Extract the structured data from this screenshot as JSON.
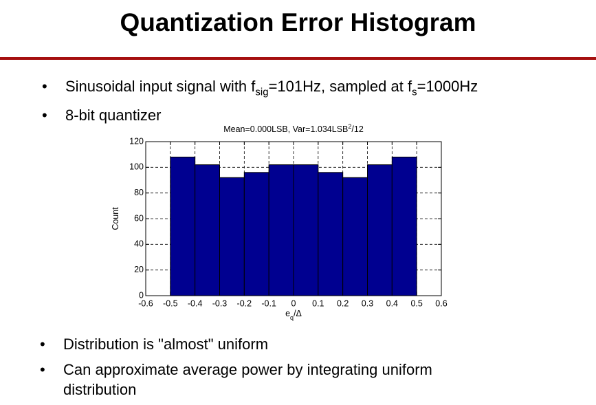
{
  "slide": {
    "title": "Quantization Error Histogram",
    "bullets_top": [
      [
        {
          "text": "Sinusoidal input signal with f"
        },
        {
          "sub": "sig"
        },
        {
          "text": "=101Hz, sampled at f"
        },
        {
          "sub": "s"
        },
        {
          "text": "=1000Hz"
        }
      ],
      [
        {
          "text": "8-bit quantizer"
        }
      ]
    ],
    "bullets_bottom": [
      [
        {
          "text": "Distribution is \"almost\" uniform"
        }
      ],
      [
        {
          "text": "Can approximate average power by integrating uniform distribution"
        }
      ]
    ]
  },
  "chart_data": {
    "type": "histogram",
    "title": [
      {
        "text": "Mean=0.000LSB, Var=1.034LSB"
      },
      {
        "sup": "2"
      },
      {
        "text": "/12"
      }
    ],
    "x_label": [
      {
        "text": "e"
      },
      {
        "sub": "q"
      },
      {
        "text": "/Δ"
      }
    ],
    "y_label": "Count",
    "bins": [
      -0.5,
      -0.4,
      -0.3,
      -0.2,
      -0.1,
      0,
      0.1,
      0.2,
      0.3,
      0.4,
      0.5
    ],
    "values": [
      108,
      102,
      92,
      96,
      102,
      102,
      96,
      92,
      102,
      108
    ],
    "color": "#000090",
    "xlim": [
      -0.6,
      0.6
    ],
    "xticks": [
      -0.6,
      -0.5,
      -0.4,
      -0.3,
      -0.2,
      -0.1,
      0,
      0.1,
      0.2,
      0.3,
      0.4,
      0.5,
      0.6
    ],
    "ylim": [
      0,
      120
    ],
    "yticks": [
      0,
      20,
      40,
      60,
      80,
      100,
      120
    ],
    "grid": true
  }
}
